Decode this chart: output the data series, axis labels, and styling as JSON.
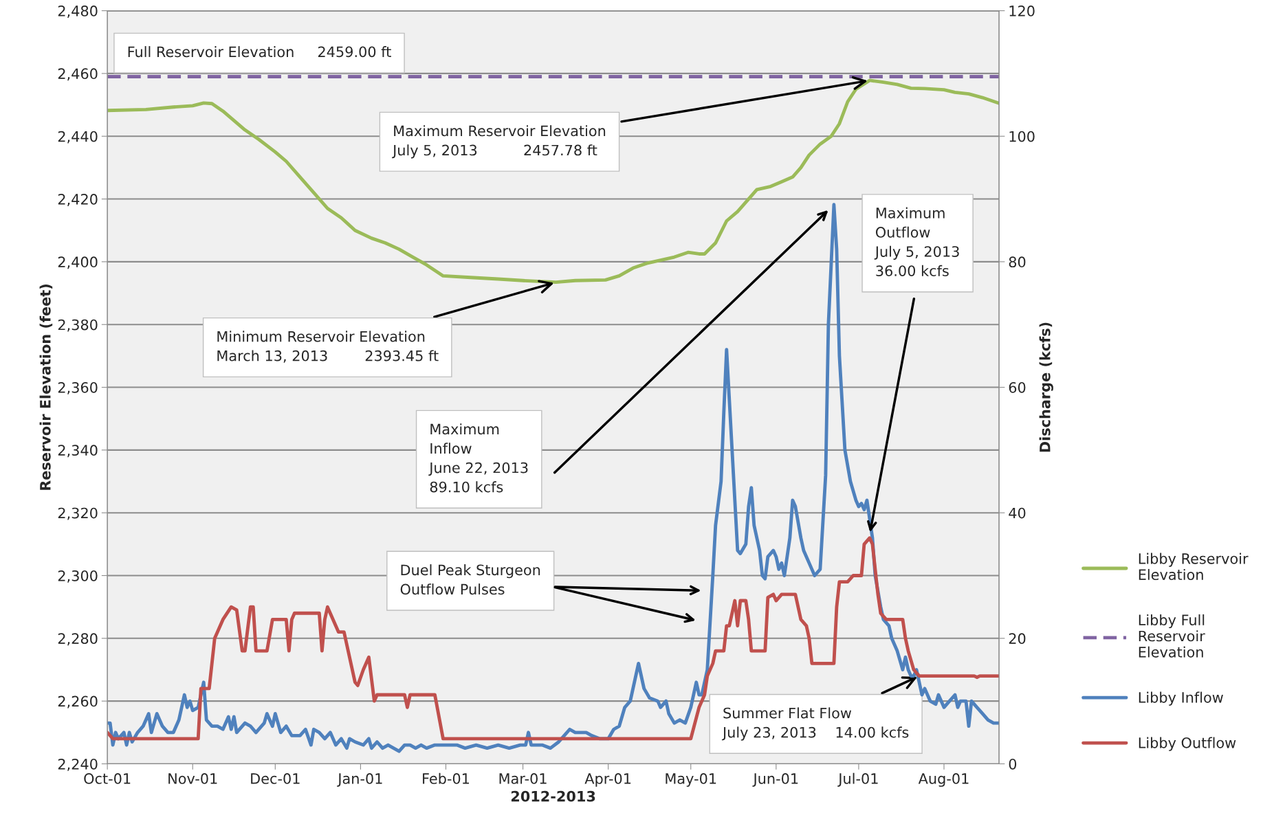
{
  "chart_data": {
    "type": "line",
    "xlabel": "2012-2013",
    "ylabel": "Reservoir Elevation (feet)",
    "y2label": "Discharge (kcfs)",
    "xlim": [
      "2012-10-01",
      "2013-08-21"
    ],
    "xticks": [
      {
        "value": "2012-10-01",
        "label": "Oct-01"
      },
      {
        "value": "2012-11-01",
        "label": "Nov-01"
      },
      {
        "value": "2012-12-01",
        "label": "Dec-01"
      },
      {
        "value": "2013-01-01",
        "label": "Jan-01"
      },
      {
        "value": "2013-02-01",
        "label": "Feb-01"
      },
      {
        "value": "2013-03-01",
        "label": "Mar-01"
      },
      {
        "value": "2013-04-01",
        "label": "Apr-01"
      },
      {
        "value": "2013-05-01",
        "label": "May-01"
      },
      {
        "value": "2013-06-01",
        "label": "Jun-01"
      },
      {
        "value": "2013-07-01",
        "label": "Jul-01"
      },
      {
        "value": "2013-08-01",
        "label": "Aug-01"
      }
    ],
    "ylim": [
      2240,
      2480
    ],
    "yticks": [
      {
        "value": 2240,
        "label": "2,240"
      },
      {
        "value": 2260,
        "label": "2,260"
      },
      {
        "value": 2280,
        "label": "2,280"
      },
      {
        "value": 2300,
        "label": "2,300"
      },
      {
        "value": 2320,
        "label": "2,320"
      },
      {
        "value": 2340,
        "label": "2,340"
      },
      {
        "value": 2360,
        "label": "2,360"
      },
      {
        "value": 2380,
        "label": "2,380"
      },
      {
        "value": 2400,
        "label": "2,400"
      },
      {
        "value": 2420,
        "label": "2,420"
      },
      {
        "value": 2440,
        "label": "2,440"
      },
      {
        "value": 2460,
        "label": "2,460"
      },
      {
        "value": 2480,
        "label": "2,480"
      }
    ],
    "y2lim": [
      0,
      120
    ],
    "y2ticks": [
      0,
      20,
      40,
      60,
      80,
      100,
      120
    ],
    "grid": "y",
    "legend": "right",
    "marker": "none",
    "series": [
      {
        "name": "Libby Reservoir Elevation",
        "color": "#9bbb59",
        "axis": "y",
        "line_style": "solid",
        "x": [
          "2012-10-01",
          "2012-10-15",
          "2012-10-25",
          "2012-11-01",
          "2012-11-05",
          "2012-11-08",
          "2012-11-12",
          "2012-11-16",
          "2012-11-20",
          "2012-11-25",
          "2012-12-01",
          "2012-12-05",
          "2012-12-10",
          "2012-12-15",
          "2012-12-20",
          "2012-12-25",
          "2012-12-30",
          "2013-01-05",
          "2013-01-10",
          "2013-01-15",
          "2013-01-20",
          "2013-01-25",
          "2013-01-31",
          "2013-02-10",
          "2013-02-20",
          "2013-03-01",
          "2013-03-13",
          "2013-03-20",
          "2013-03-31",
          "2013-04-05",
          "2013-04-10",
          "2013-04-15",
          "2013-04-20",
          "2013-04-25",
          "2013-04-30",
          "2013-05-04",
          "2013-05-06",
          "2013-05-10",
          "2013-05-14",
          "2013-05-18",
          "2013-05-22",
          "2013-05-25",
          "2013-05-30",
          "2013-06-03",
          "2013-06-07",
          "2013-06-10",
          "2013-06-13",
          "2013-06-17",
          "2013-06-21",
          "2013-06-24",
          "2013-06-27",
          "2013-06-30",
          "2013-07-05",
          "2013-07-10",
          "2013-07-15",
          "2013-07-20",
          "2013-07-25",
          "2013-08-01",
          "2013-08-05",
          "2013-08-10",
          "2013-08-15",
          "2013-08-21"
        ],
        "values": [
          2448.2,
          2448.5,
          2449.3,
          2449.7,
          2450.6,
          2450.4,
          2448,
          2445,
          2442,
          2439,
          2435,
          2432,
          2427,
          2422,
          2417,
          2414,
          2410,
          2407.5,
          2406,
          2404,
          2401.5,
          2399,
          2395.5,
          2395,
          2394.5,
          2394,
          2393.5,
          2394,
          2394.2,
          2395.5,
          2398,
          2399.5,
          2400.5,
          2401.5,
          2403,
          2402.5,
          2402.5,
          2406,
          2413,
          2416,
          2420,
          2423,
          2424,
          2425.5,
          2427,
          2430,
          2434,
          2437.5,
          2440,
          2444,
          2451,
          2455,
          2457.8,
          2457.2,
          2456.5,
          2455.3,
          2455.2,
          2454.8,
          2454,
          2453.5,
          2452.3,
          2450.5
        ]
      },
      {
        "name": "Libby Full Reservoir Elevation",
        "color": "#8064a2",
        "axis": "y",
        "line_style": "dashed",
        "x": [
          "2012-10-01",
          "2013-08-21"
        ],
        "values": [
          2459,
          2459
        ]
      },
      {
        "name": "Libby Inflow",
        "color": "#4f81bd",
        "axis": "y2",
        "line_style": "solid",
        "x": [
          "2012-10-01",
          "2012-10-02",
          "2012-10-03",
          "2012-10-04",
          "2012-10-05",
          "2012-10-07",
          "2012-10-08",
          "2012-10-09",
          "2012-10-10",
          "2012-10-12",
          "2012-10-14",
          "2012-10-16",
          "2012-10-17",
          "2012-10-19",
          "2012-10-21",
          "2012-10-23",
          "2012-10-25",
          "2012-10-27",
          "2012-10-29",
          "2012-10-30",
          "2012-10-31",
          "2012-11-01",
          "2012-11-03",
          "2012-11-05",
          "2012-11-06",
          "2012-11-08",
          "2012-11-10",
          "2012-11-12",
          "2012-11-14",
          "2012-11-15",
          "2012-11-16",
          "2012-11-17",
          "2012-11-20",
          "2012-11-22",
          "2012-11-24",
          "2012-11-27",
          "2012-11-28",
          "2012-11-30",
          "2012-12-01",
          "2012-12-03",
          "2012-12-05",
          "2012-12-07",
          "2012-12-10",
          "2012-12-12",
          "2012-12-14",
          "2012-12-15",
          "2012-12-17",
          "2012-12-19",
          "2012-12-21",
          "2012-12-23",
          "2012-12-25",
          "2012-12-27",
          "2012-12-28",
          "2012-12-30",
          "2013-01-02",
          "2013-01-04",
          "2013-01-05",
          "2013-01-07",
          "2013-01-09",
          "2013-01-11",
          "2013-01-13",
          "2013-01-15",
          "2013-01-17",
          "2013-01-19",
          "2013-01-21",
          "2013-01-23",
          "2013-01-25",
          "2013-01-28",
          "2013-02-01",
          "2013-02-05",
          "2013-02-08",
          "2013-02-12",
          "2013-02-16",
          "2013-02-20",
          "2013-02-24",
          "2013-02-28",
          "2013-03-02",
          "2013-03-03",
          "2013-03-04",
          "2013-03-08",
          "2013-03-11",
          "2013-03-14",
          "2013-03-16",
          "2013-03-18",
          "2013-03-20",
          "2013-03-24",
          "2013-03-26",
          "2013-03-29",
          "2013-04-01",
          "2013-04-03",
          "2013-04-05",
          "2013-04-07",
          "2013-04-09",
          "2013-04-11",
          "2013-04-12",
          "2013-04-14",
          "2013-04-16",
          "2013-04-19",
          "2013-04-20",
          "2013-04-22",
          "2013-04-23",
          "2013-04-25",
          "2013-04-27",
          "2013-04-29",
          "2013-05-01",
          "2013-05-03",
          "2013-05-04",
          "2013-05-05",
          "2013-05-07",
          "2013-05-09",
          "2013-05-10",
          "2013-05-12",
          "2013-05-13",
          "2013-05-14",
          "2013-05-15",
          "2013-05-17",
          "2013-05-18",
          "2013-05-19",
          "2013-05-21",
          "2013-05-22",
          "2013-05-23",
          "2013-05-24",
          "2013-05-26",
          "2013-05-27",
          "2013-05-28",
          "2013-05-29",
          "2013-05-31",
          "2013-06-01",
          "2013-06-02",
          "2013-06-03",
          "2013-06-04",
          "2013-06-06",
          "2013-06-07",
          "2013-06-08",
          "2013-06-10",
          "2013-06-11",
          "2013-06-14",
          "2013-06-15",
          "2013-06-17",
          "2013-06-19",
          "2013-06-20",
          "2013-06-22",
          "2013-06-23",
          "2013-06-24",
          "2013-06-26",
          "2013-06-28",
          "2013-06-30",
          "2013-07-01",
          "2013-07-02",
          "2013-07-03",
          "2013-07-04",
          "2013-07-06",
          "2013-07-07",
          "2013-07-09",
          "2013-07-10",
          "2013-07-12",
          "2013-07-13",
          "2013-07-15",
          "2013-07-17",
          "2013-07-18",
          "2013-07-19",
          "2013-07-20",
          "2013-07-21",
          "2013-07-22",
          "2013-07-24",
          "2013-07-25",
          "2013-07-27",
          "2013-07-29",
          "2013-07-30",
          "2013-08-01",
          "2013-08-03",
          "2013-08-05",
          "2013-08-06",
          "2013-08-07",
          "2013-08-09",
          "2013-08-10",
          "2013-08-11",
          "2013-08-13",
          "2013-08-15",
          "2013-08-17",
          "2013-08-19",
          "2013-08-21"
        ],
        "values": [
          6.5,
          6.5,
          3,
          5,
          4,
          5,
          3,
          5,
          3.5,
          5,
          6,
          8,
          5,
          8,
          6,
          5,
          5,
          7,
          11,
          9,
          10,
          8.5,
          9,
          13,
          7,
          6,
          6,
          5.5,
          7.5,
          5.5,
          7.5,
          5,
          6.5,
          6,
          5,
          6.5,
          8,
          6,
          8,
          5,
          6,
          4.5,
          4.5,
          5.5,
          3,
          5.5,
          5,
          4,
          5,
          3,
          4,
          2.5,
          4,
          3.5,
          3,
          4,
          2.5,
          3.5,
          2.5,
          3,
          2.5,
          2,
          3,
          3,
          2.5,
          3,
          2.5,
          3,
          3,
          3,
          2.5,
          3,
          2.5,
          3,
          2.5,
          3,
          3,
          5,
          3,
          3,
          2.5,
          3.5,
          4.5,
          5.5,
          5,
          5,
          4.5,
          4,
          4,
          5.5,
          6,
          9,
          10,
          14,
          16,
          12,
          10.5,
          10,
          9,
          10,
          8,
          6.5,
          7,
          6.5,
          9,
          13,
          11,
          11,
          15,
          30,
          38,
          45,
          56,
          66,
          58,
          42,
          34,
          33.5,
          35,
          41,
          44,
          38,
          34,
          30,
          29.5,
          33,
          34,
          33,
          31,
          32,
          30,
          36,
          42,
          41,
          36,
          34,
          31,
          30,
          31,
          46,
          70,
          89.1,
          82,
          65,
          50,
          45,
          42,
          41,
          41.5,
          40.5,
          42,
          36,
          30,
          25,
          23,
          22,
          20,
          18,
          15,
          17,
          15,
          14,
          14,
          15,
          11,
          12,
          10,
          9.5,
          11,
          9,
          10,
          11,
          9,
          10,
          10,
          6,
          10,
          9,
          8,
          7,
          6.5,
          6.5
        ]
      },
      {
        "name": "Libby Outflow",
        "color": "#c0504d",
        "axis": "y2",
        "line_style": "solid",
        "x": [
          "2012-10-01",
          "2012-10-03",
          "2012-11-03",
          "2012-11-04",
          "2012-11-07",
          "2012-11-09",
          "2012-11-10",
          "2012-11-12",
          "2012-11-15",
          "2012-11-17",
          "2012-11-19",
          "2012-11-20",
          "2012-11-22",
          "2012-11-23",
          "2012-11-24",
          "2012-11-28",
          "2012-11-30",
          "2012-12-05",
          "2012-12-06",
          "2012-12-07",
          "2012-12-08",
          "2012-12-17",
          "2012-12-18",
          "2012-12-19",
          "2012-12-20",
          "2012-12-22",
          "2012-12-24",
          "2012-12-26",
          "2012-12-28",
          "2012-12-30",
          "2012-12-31",
          "2013-01-02",
          "2013-01-04",
          "2013-01-06",
          "2013-01-07",
          "2013-01-17",
          "2013-01-18",
          "2013-01-19",
          "2013-01-28",
          "2013-01-31",
          "2013-05-01",
          "2013-05-04",
          "2013-05-06",
          "2013-05-07",
          "2013-05-09",
          "2013-05-10",
          "2013-05-13",
          "2013-05-14",
          "2013-05-15",
          "2013-05-17",
          "2013-05-18",
          "2013-05-19",
          "2013-05-21",
          "2013-05-22",
          "2013-05-23",
          "2013-05-28",
          "2013-05-29",
          "2013-05-31",
          "2013-06-01",
          "2013-06-03",
          "2013-06-08",
          "2013-06-10",
          "2013-06-12",
          "2013-06-13",
          "2013-06-14",
          "2013-06-22",
          "2013-06-23",
          "2013-06-24",
          "2013-06-27",
          "2013-06-29",
          "2013-07-02",
          "2013-07-03",
          "2013-07-05",
          "2013-07-06",
          "2013-07-08",
          "2013-07-09",
          "2013-07-11",
          "2013-07-17",
          "2013-07-18",
          "2013-07-19",
          "2013-07-21",
          "2013-07-23",
          "2013-08-12",
          "2013-08-13",
          "2013-08-14",
          "2013-08-21"
        ],
        "values": [
          5,
          4,
          4,
          12,
          12,
          20,
          21,
          23,
          25,
          24.5,
          18,
          18,
          25,
          25,
          18,
          18,
          23,
          23,
          18,
          23,
          24,
          24,
          18,
          23,
          25,
          23,
          21,
          21,
          17,
          13,
          12.5,
          15,
          17,
          10,
          11,
          11,
          9,
          11,
          11,
          4,
          4,
          9,
          11,
          14,
          16,
          18,
          18,
          22,
          22,
          26,
          22,
          26,
          26,
          23,
          18,
          18,
          26.5,
          27,
          26,
          27,
          27,
          23,
          22,
          20,
          16,
          16,
          25,
          29,
          29,
          30,
          30,
          35,
          36,
          35,
          27,
          24,
          23,
          23,
          20,
          18,
          15,
          14,
          14,
          13.8,
          14,
          14
        ]
      }
    ],
    "annotations": [
      "Full Reservoir Elevation     2459.00 ft",
      {
        "text": "Maximum Reservoir Elevation\nJuly 5, 2013          2457.78 ft",
        "x": "2013-07-05",
        "y": 2457.78
      },
      {
        "text": "Minimum Reservoir Elevation\nMarch 13, 2013        2393.45 ft",
        "x": "2013-03-13",
        "y": 2393.45
      },
      "Maximum\nInflow\nJune 22, 2013\n89.10 kcfs",
      "Maximum\nOutflow\nJuly 5, 2013\n36.00 kcfs",
      "Duel Peak Sturgeon\nOutflow Pulses",
      {
        "text": "Summer Flat Flow\nJuly 23, 2013    14.00 kcfs",
        "x": "2013-07-23",
        "y": 2268
      }
    ]
  }
}
